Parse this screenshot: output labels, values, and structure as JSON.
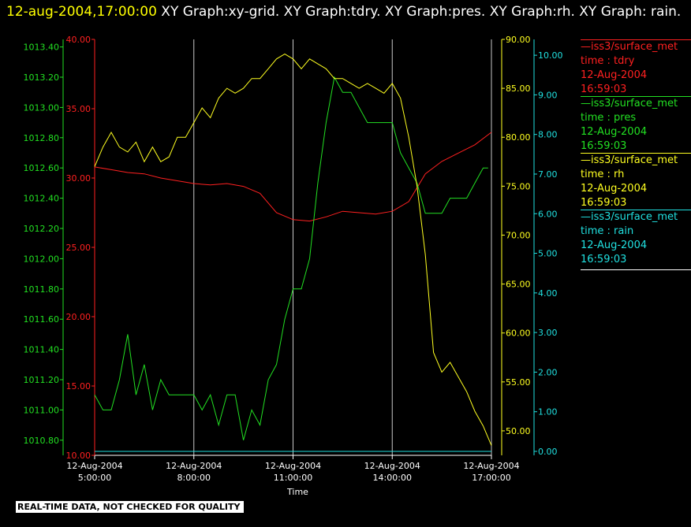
{
  "header": {
    "timestamp": "12-aug-2004,17:00:00",
    "description": " XY Graph:xy-grid.  XY Graph:tdry.  XY Graph:pres.  XY Graph:rh.  XY Graph: rain."
  },
  "footer": {
    "quality_note": "REAL-TIME DATA, NOT CHECKED FOR QUALITY"
  },
  "legend": [
    {
      "name": "iss3/surface_met",
      "var": "time : tdry",
      "date": "12-Aug-2004",
      "time": "16:59:03",
      "color": "#ff2020"
    },
    {
      "name": "iss3/surface_met",
      "var": "time : pres",
      "date": "12-Aug-2004",
      "time": "16:59:03",
      "color": "#22e022"
    },
    {
      "name": "iss3/surface_met",
      "var": "time : rh",
      "date": "12-Aug-2004",
      "time": "16:59:03",
      "color": "#ffff20"
    },
    {
      "name": "iss3/surface_met",
      "var": "time : rain",
      "date": "12-Aug-2004",
      "time": "16:59:03",
      "color": "#20e0e0"
    }
  ],
  "chart_data": {
    "type": "line",
    "xlabel": "Time",
    "x_ticks": [
      {
        "date": "12-Aug-2004",
        "time": "5:00:00",
        "hour": 5
      },
      {
        "date": "12-Aug-2004",
        "time": "8:00:00",
        "hour": 8
      },
      {
        "date": "12-Aug-2004",
        "time": "11:00:00",
        "hour": 11
      },
      {
        "date": "12-Aug-2004",
        "time": "14:00:00",
        "hour": 14
      },
      {
        "date": "12-Aug-2004",
        "time": "17:00:00",
        "hour": 17
      }
    ],
    "xlim_hours": [
      5,
      17
    ],
    "grid": "vertical lines at x ticks",
    "axes": {
      "pres": {
        "side": "left-outer",
        "color": "#22e022",
        "ylim": [
          1010.7,
          1013.45
        ],
        "ticks": [
          "1010.80",
          "1011.00",
          "1011.20",
          "1011.40",
          "1011.60",
          "1011.80",
          "1012.00",
          "1012.20",
          "1012.40",
          "1012.60",
          "1012.80",
          "1013.00",
          "1013.20",
          "1013.40"
        ]
      },
      "tdry": {
        "side": "left-inner",
        "color": "#ff2020",
        "ylim": [
          10,
          40
        ],
        "ticks": [
          "10.00",
          "15.00",
          "20.00",
          "25.00",
          "30.00",
          "35.00",
          "40.00"
        ]
      },
      "rh": {
        "side": "right-inner",
        "color": "#ffff20",
        "ylim": [
          47.5,
          90
        ],
        "ticks": [
          "50.00",
          "55.00",
          "60.00",
          "65.00",
          "70.00",
          "75.00",
          "80.00",
          "85.00",
          "90.00"
        ]
      },
      "rain": {
        "side": "right-outer",
        "color": "#20e0e0",
        "ylim": [
          -0.1,
          10.4
        ],
        "ticks": [
          "0.00",
          "1.00",
          "2.00",
          "3.00",
          "4.00",
          "5.00",
          "6.00",
          "7.00",
          "8.00",
          "9.00",
          "10.00"
        ]
      }
    },
    "series": [
      {
        "name": "tdry",
        "axis": "tdry",
        "color": "#ff2020",
        "x": [
          5.0,
          5.5,
          6.0,
          6.5,
          7.0,
          7.5,
          8.0,
          8.5,
          9.0,
          9.5,
          10.0,
          10.5,
          11.0,
          11.5,
          12.0,
          12.5,
          13.0,
          13.5,
          14.0,
          14.5,
          15.0,
          15.5,
          16.0,
          16.5,
          17.0
        ],
        "values": [
          30.8,
          30.6,
          30.4,
          30.3,
          30.0,
          29.8,
          29.6,
          29.5,
          29.6,
          29.4,
          28.9,
          27.5,
          27.0,
          26.9,
          27.2,
          27.6,
          27.5,
          27.4,
          27.6,
          28.3,
          30.3,
          31.2,
          31.8,
          32.4,
          33.3
        ]
      },
      {
        "name": "pres",
        "axis": "pres",
        "color": "#22e022",
        "x": [
          5.0,
          5.25,
          5.5,
          5.75,
          6.0,
          6.25,
          6.5,
          6.75,
          7.0,
          7.25,
          7.5,
          7.75,
          8.0,
          8.25,
          8.5,
          8.75,
          9.0,
          9.25,
          9.5,
          9.75,
          10.0,
          10.25,
          10.5,
          10.75,
          11.0,
          11.25,
          11.5,
          11.75,
          12.0,
          12.25,
          12.5,
          12.75,
          13.0,
          13.25,
          13.5,
          13.75,
          14.0,
          14.25,
          14.5,
          14.75,
          15.0,
          15.25,
          15.5,
          15.75,
          16.0,
          16.25,
          16.5,
          16.75,
          16.9
        ],
        "values": [
          1011.1,
          1011.0,
          1011.0,
          1011.2,
          1011.5,
          1011.1,
          1011.3,
          1011.0,
          1011.2,
          1011.1,
          1011.1,
          1011.1,
          1011.1,
          1011.0,
          1011.1,
          1010.9,
          1011.1,
          1011.1,
          1010.8,
          1011.0,
          1010.9,
          1011.2,
          1011.3,
          1011.6,
          1011.8,
          1011.8,
          1012.0,
          1012.5,
          1012.9,
          1013.2,
          1013.1,
          1013.1,
          1013.0,
          1012.9,
          1012.9,
          1012.9,
          1012.9,
          1012.7,
          1012.6,
          1012.5,
          1012.3,
          1012.3,
          1012.3,
          1012.4,
          1012.4,
          1012.4,
          1012.5,
          1012.6,
          1012.6
        ]
      },
      {
        "name": "rh",
        "axis": "rh",
        "color": "#ffff20",
        "x": [
          5.0,
          5.25,
          5.5,
          5.75,
          6.0,
          6.25,
          6.5,
          6.75,
          7.0,
          7.25,
          7.5,
          7.75,
          8.0,
          8.25,
          8.5,
          8.75,
          9.0,
          9.25,
          9.5,
          9.75,
          10.0,
          10.25,
          10.5,
          10.75,
          11.0,
          11.25,
          11.5,
          11.75,
          12.0,
          12.25,
          12.5,
          12.75,
          13.0,
          13.25,
          13.5,
          13.75,
          14.0,
          14.25,
          14.5,
          14.75,
          15.0,
          15.25,
          15.5,
          15.75,
          16.0,
          16.25,
          16.5,
          16.75,
          17.0
        ],
        "values": [
          77.0,
          79.0,
          80.5,
          79.0,
          78.5,
          79.5,
          77.5,
          79.0,
          77.5,
          78.0,
          80.0,
          80.0,
          81.5,
          83.0,
          82.0,
          84.0,
          85.0,
          84.5,
          85.0,
          86.0,
          86.0,
          87.0,
          88.0,
          88.5,
          88.0,
          87.0,
          88.0,
          87.5,
          87.0,
          86.0,
          86.0,
          85.5,
          85.0,
          85.5,
          85.0,
          84.5,
          85.5,
          84.0,
          80.0,
          75.0,
          68.0,
          58.0,
          56.0,
          57.0,
          55.5,
          54.0,
          52.0,
          50.5,
          48.5
        ]
      },
      {
        "name": "rain",
        "axis": "rain",
        "color": "#20e0e0",
        "x": [
          5.0,
          17.0
        ],
        "values": [
          0.0,
          0.0
        ]
      }
    ]
  }
}
